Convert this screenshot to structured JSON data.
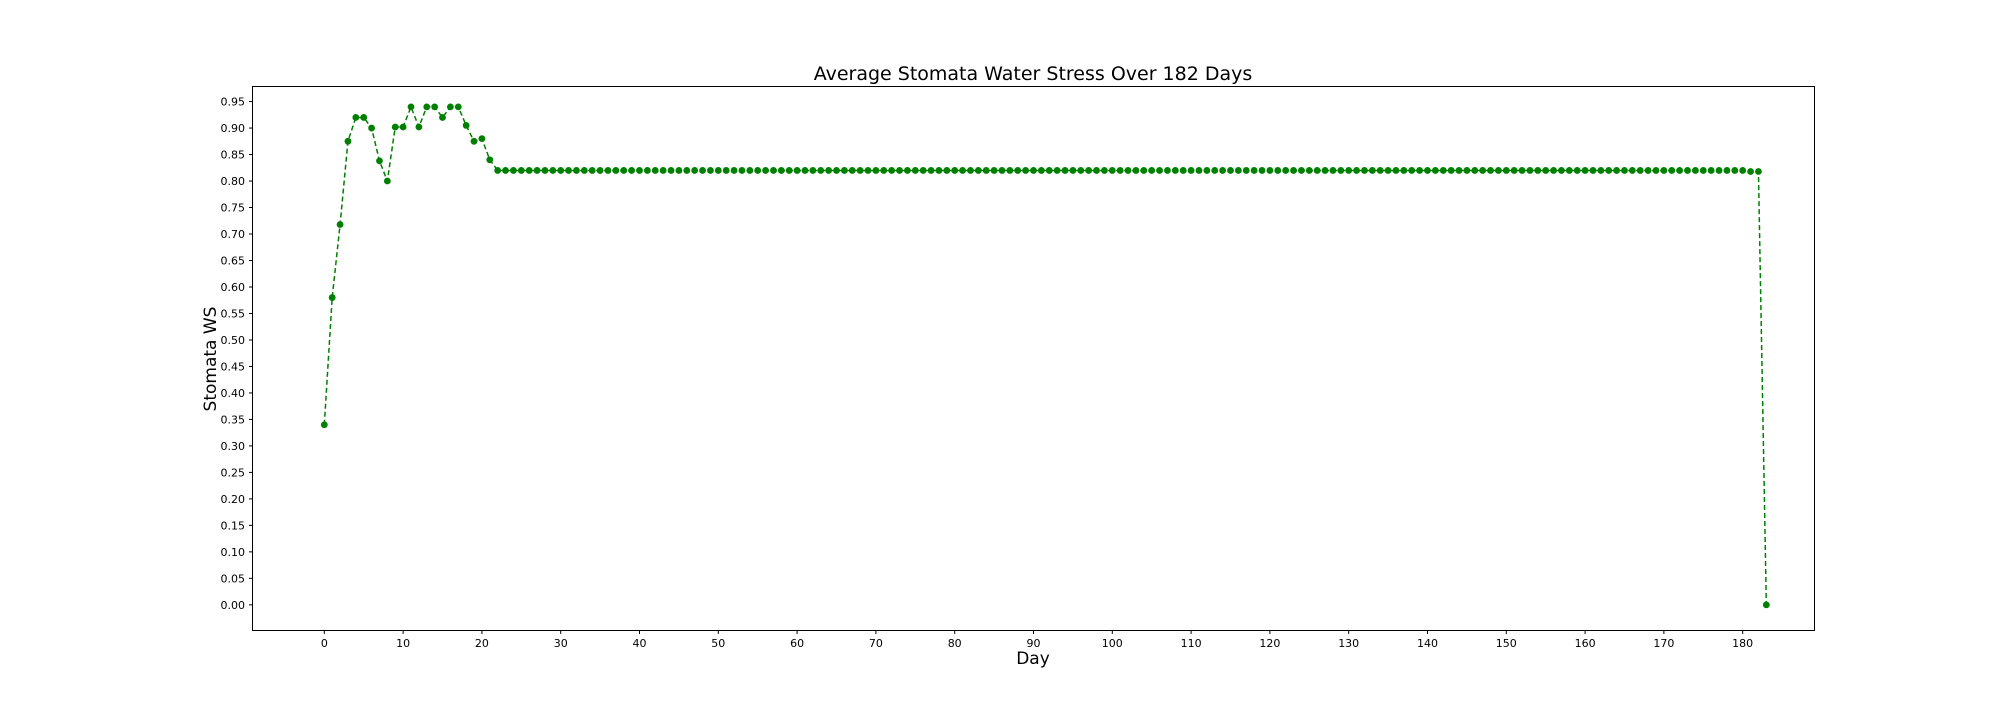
{
  "chart_data": {
    "type": "line",
    "title": "Average Stomata Water Stress Over 182 Days",
    "xlabel": "Day",
    "ylabel": "Stomata WS",
    "xlim": [
      -9.05,
      189.05
    ],
    "ylim": [
      -0.0475,
      0.9775
    ],
    "xticks": [
      0,
      10,
      20,
      30,
      40,
      50,
      60,
      70,
      80,
      90,
      100,
      110,
      120,
      130,
      140,
      150,
      160,
      170,
      180
    ],
    "yticks": [
      "0.00",
      "0.05",
      "0.10",
      "0.15",
      "0.20",
      "0.25",
      "0.30",
      "0.35",
      "0.40",
      "0.45",
      "0.50",
      "0.55",
      "0.60",
      "0.65",
      "0.70",
      "0.75",
      "0.80",
      "0.85",
      "0.90",
      "0.95"
    ],
    "grid": false,
    "line_style": "dashed",
    "marker": "circle",
    "color": "#008000",
    "series": [
      {
        "x_start": 0,
        "values": [
          0.34,
          0.58,
          0.718,
          0.875,
          0.92,
          0.92,
          0.9,
          0.838,
          0.8,
          0.902,
          0.902,
          0.94,
          0.902,
          0.94,
          0.94,
          0.92,
          0.94,
          0.94,
          0.905,
          0.875,
          0.88,
          0.84,
          0.82,
          0.82,
          0.82,
          0.82,
          0.82,
          0.82,
          0.82,
          0.82,
          0.82,
          0.82,
          0.82,
          0.82,
          0.82,
          0.82,
          0.82,
          0.82,
          0.82,
          0.82,
          0.82,
          0.82,
          0.82,
          0.82,
          0.82,
          0.82,
          0.82,
          0.82,
          0.82,
          0.82,
          0.82,
          0.82,
          0.82,
          0.82,
          0.82,
          0.82,
          0.82,
          0.82,
          0.82,
          0.82,
          0.82,
          0.82,
          0.82,
          0.82,
          0.82,
          0.82,
          0.82,
          0.82,
          0.82,
          0.82,
          0.82,
          0.82,
          0.82,
          0.82,
          0.82,
          0.82,
          0.82,
          0.82,
          0.82,
          0.82,
          0.82,
          0.82,
          0.82,
          0.82,
          0.82,
          0.82,
          0.82,
          0.82,
          0.82,
          0.82,
          0.82,
          0.82,
          0.82,
          0.82,
          0.82,
          0.82,
          0.82,
          0.82,
          0.82,
          0.82,
          0.82,
          0.82,
          0.82,
          0.82,
          0.82,
          0.82,
          0.82,
          0.82,
          0.82,
          0.82,
          0.82,
          0.82,
          0.82,
          0.82,
          0.82,
          0.82,
          0.82,
          0.82,
          0.82,
          0.82,
          0.82,
          0.82,
          0.82,
          0.82,
          0.82,
          0.82,
          0.82,
          0.82,
          0.82,
          0.82,
          0.82,
          0.82,
          0.82,
          0.82,
          0.82,
          0.82,
          0.82,
          0.82,
          0.82,
          0.82,
          0.82,
          0.82,
          0.82,
          0.82,
          0.82,
          0.82,
          0.82,
          0.82,
          0.82,
          0.82,
          0.82,
          0.82,
          0.82,
          0.82,
          0.82,
          0.82,
          0.82,
          0.82,
          0.82,
          0.82,
          0.82,
          0.82,
          0.82,
          0.82,
          0.82,
          0.82,
          0.82,
          0.82,
          0.82,
          0.82,
          0.82,
          0.82,
          0.82,
          0.82,
          0.82,
          0.82,
          0.82,
          0.82,
          0.82,
          0.82,
          0.82,
          0.818,
          0.818,
          0.0
        ]
      }
    ]
  }
}
